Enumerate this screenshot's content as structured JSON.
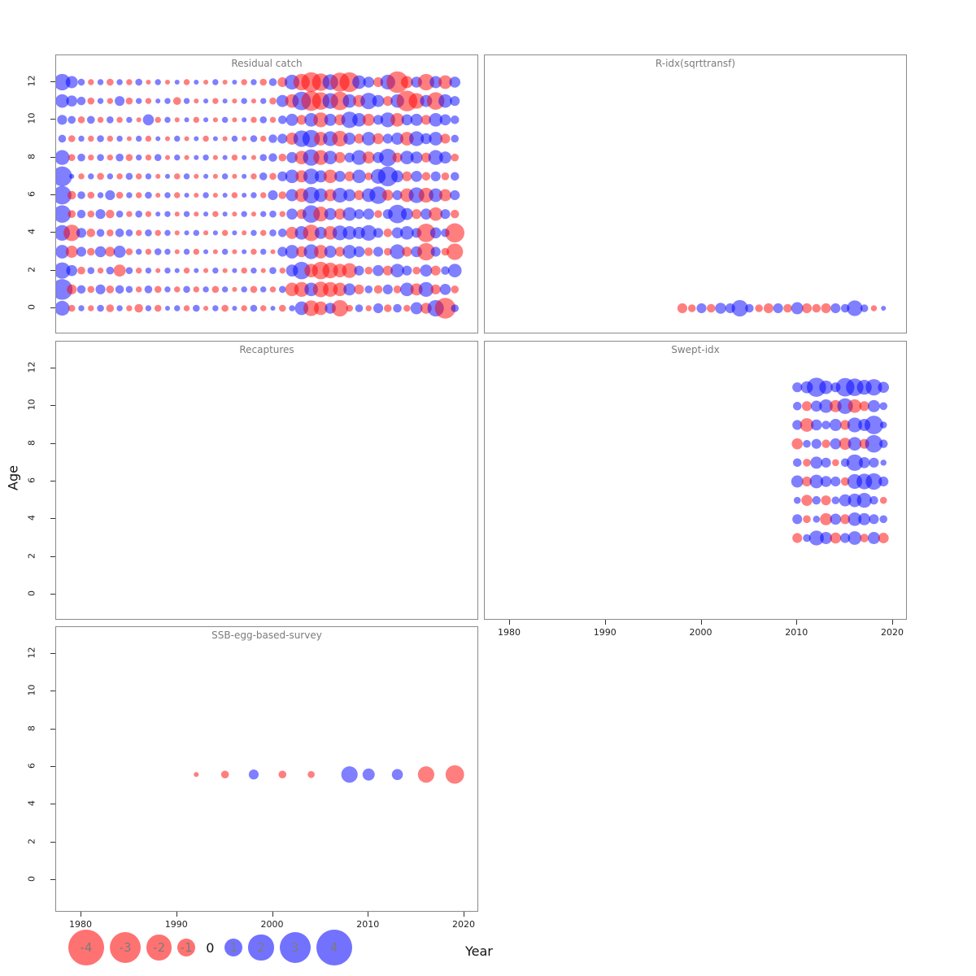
{
  "figure": {
    "x_axis_label": "Year",
    "y_axis_label": "Age",
    "x_ticks": [
      1980,
      1990,
      2000,
      2010,
      2020
    ],
    "y_ticks": [
      0,
      2,
      4,
      6,
      8,
      10,
      12
    ],
    "colors": {
      "positive": "#0000ff",
      "negative": "#ff0000"
    },
    "legend": {
      "values": [
        -4,
        -3,
        -2,
        -1,
        0,
        1,
        2,
        3,
        4
      ]
    }
  },
  "chart_data": {
    "type": "scatter",
    "subtype": "bubble-residual-matrix",
    "x_range": [
      1977,
      2021
    ],
    "y_range": [
      -1,
      13
    ],
    "x_ticks": [
      1980,
      1990,
      2000,
      2010,
      2020
    ],
    "y_ticks": [
      0,
      2,
      4,
      6,
      8,
      10,
      12
    ],
    "xlabel": "Year",
    "ylabel": "Age",
    "legend_values": [
      -4,
      -3,
      -2,
      -1,
      0,
      1,
      2,
      3,
      4
    ],
    "panels": [
      {
        "title": "Residual catch",
        "rows": [
          {
            "age": 0,
            "start_year": 1978,
            "values": [
              1.8,
              -0.4,
              0.3,
              -0.3,
              0.4,
              -0.5,
              0.3,
              -0.3,
              -0.6,
              0.3,
              -0.4,
              0.2,
              0.3,
              -0.3,
              0.4,
              -0.2,
              0.3,
              -0.4,
              0.2,
              -0.3,
              0.4,
              -0.3,
              0.2,
              -0.4,
              0.3,
              1.5,
              -2.0,
              -1.5,
              1.0,
              -2.2,
              -0.4,
              0.5,
              -0.3,
              0.8,
              -0.5,
              0.6,
              -0.4,
              1.2,
              -1.0,
              2.2,
              -3.5,
              0.5
            ]
          },
          {
            "age": 1,
            "start_year": 1978,
            "values": [
              3.5,
              -0.8,
              0.6,
              -0.4,
              0.8,
              -0.5,
              0.6,
              0.4,
              -0.3,
              0.5,
              -0.4,
              0.3,
              -0.3,
              0.4,
              -0.3,
              0.3,
              -0.4,
              0.3,
              -0.2,
              0.3,
              -0.4,
              0.3,
              -0.3,
              0.4,
              -1.5,
              -1.8,
              1.5,
              -2.0,
              -1.8,
              -1.5,
              1.2,
              -0.8,
              0.5,
              -0.6,
              0.8,
              -0.5,
              1.5,
              -1.2,
              1.8,
              -0.8,
              1.0,
              -0.5
            ]
          },
          {
            "age": 2,
            "start_year": 1978,
            "values": [
              2.2,
              1.0,
              -0.5,
              0.4,
              -0.3,
              0.5,
              -1.2,
              0.4,
              -0.3,
              0.3,
              -0.2,
              0.3,
              0.2,
              -0.3,
              0.2,
              -0.2,
              0.3,
              -0.2,
              0.2,
              -0.3,
              0.3,
              -0.2,
              0.4,
              -0.3,
              1.2,
              2.5,
              -1.5,
              -2.5,
              -2.0,
              -1.5,
              -1.8,
              0.8,
              -0.5,
              1.0,
              -0.8,
              1.5,
              0.8,
              -0.5,
              1.2,
              -0.8,
              0.6,
              1.5
            ]
          },
          {
            "age": 3,
            "start_year": 1978,
            "values": [
              1.5,
              -1.2,
              0.8,
              -0.5,
              1.0,
              -0.8,
              1.2,
              -0.4,
              0.3,
              -0.3,
              0.4,
              0.3,
              -0.2,
              0.3,
              -0.3,
              0.2,
              -0.2,
              0.3,
              -0.2,
              0.2,
              -0.3,
              0.3,
              -0.2,
              0.8,
              1.5,
              -1.0,
              1.8,
              -1.5,
              1.2,
              -0.8,
              1.5,
              1.0,
              -0.6,
              0.8,
              -0.5,
              1.8,
              -0.8,
              1.0,
              -2.5,
              0.8,
              -0.5,
              -2.2
            ]
          },
          {
            "age": 4,
            "start_year": 1978,
            "values": [
              2.0,
              -2.2,
              0.8,
              -0.6,
              0.5,
              -0.4,
              0.6,
              0.4,
              -0.3,
              0.4,
              -0.3,
              0.3,
              -0.2,
              0.2,
              0.3,
              -0.2,
              0.2,
              -0.3,
              0.2,
              -0.2,
              0.3,
              -0.3,
              0.4,
              0.6,
              -1.2,
              1.5,
              -2.2,
              1.2,
              -1.5,
              1.8,
              1.5,
              1.2,
              2.0,
              0.8,
              -0.6,
              1.0,
              1.5,
              0.8,
              -2.8,
              1.0,
              0.6,
              -3.0
            ]
          },
          {
            "age": 5,
            "start_year": 1978,
            "values": [
              2.5,
              -0.5,
              0.6,
              -0.4,
              0.8,
              -0.6,
              0.4,
              -0.3,
              0.4,
              -0.3,
              0.2,
              0.3,
              -0.2,
              0.3,
              -0.2,
              0.2,
              -0.3,
              0.2,
              -0.2,
              0.3,
              -0.2,
              0.3,
              0.4,
              -0.3,
              1.0,
              -0.8,
              2.5,
              -1.8,
              1.2,
              -1.0,
              1.5,
              0.8,
              1.0,
              -0.5,
              0.8,
              2.8,
              1.2,
              -0.8,
              1.0,
              -1.5,
              0.8,
              -0.6
            ]
          },
          {
            "age": 6,
            "start_year": 1978,
            "values": [
              2.8,
              -0.6,
              0.5,
              -0.4,
              0.3,
              0.8,
              -0.4,
              0.3,
              -0.3,
              0.4,
              -0.2,
              0.3,
              -0.3,
              0.2,
              -0.2,
              0.3,
              -0.2,
              0.2,
              -0.3,
              0.2,
              0.3,
              -0.3,
              0.8,
              -0.5,
              1.2,
              -1.5,
              2.2,
              1.5,
              -1.2,
              1.8,
              1.2,
              -0.8,
              1.5,
              2.5,
              -1.0,
              0.8,
              -1.5,
              2.0,
              -1.8,
              1.5,
              -1.2,
              0.8
            ]
          },
          {
            "age": 7,
            "start_year": 1978,
            "values": [
              3.2,
              0.2,
              -0.3,
              0.3,
              -0.4,
              0.3,
              -0.3,
              0.4,
              -0.3,
              0.3,
              -0.2,
              0.2,
              -0.3,
              0.3,
              -0.2,
              0.2,
              -0.2,
              0.3,
              -0.2,
              0.2,
              -0.3,
              0.5,
              -0.4,
              0.8,
              1.5,
              -1.2,
              2.0,
              1.2,
              -1.5,
              1.0,
              -0.8,
              1.5,
              -0.5,
              1.8,
              3.2,
              1.2,
              -0.8,
              1.0,
              -0.6,
              0.8,
              -0.5,
              0.6
            ]
          },
          {
            "age": 8,
            "start_year": 1978,
            "values": [
              1.8,
              -0.4,
              0.5,
              -0.3,
              0.4,
              -0.3,
              0.5,
              -0.4,
              0.3,
              -0.3,
              0.4,
              -0.2,
              0.3,
              -0.2,
              0.2,
              0.3,
              -0.2,
              0.2,
              -0.3,
              0.2,
              -0.2,
              0.4,
              0.6,
              -0.5,
              1.0,
              -1.5,
              2.2,
              -1.8,
              1.5,
              -1.0,
              0.8,
              1.8,
              -1.2,
              1.0,
              2.5,
              -0.8,
              1.5,
              1.2,
              -0.8,
              1.8,
              1.2,
              -0.5
            ]
          },
          {
            "age": 9,
            "start_year": 1978,
            "values": [
              0.5,
              -0.4,
              0.3,
              -0.3,
              0.4,
              -0.3,
              0.3,
              -0.2,
              0.3,
              -0.3,
              0.2,
              -0.2,
              0.3,
              -0.2,
              0.2,
              -0.3,
              0.2,
              -0.2,
              0.3,
              -0.2,
              0.4,
              -0.3,
              0.6,
              0.8,
              -1.2,
              2.2,
              2.5,
              -1.5,
              1.8,
              -2.0,
              1.2,
              -0.8,
              1.5,
              -1.0,
              0.8,
              1.2,
              -1.5,
              1.8,
              1.0,
              1.5,
              -0.8,
              0.5
            ]
          },
          {
            "age": 10,
            "start_year": 1978,
            "values": [
              0.8,
              0.5,
              -0.4,
              0.5,
              -0.3,
              0.4,
              -0.3,
              0.3,
              -0.2,
              1.0,
              -0.3,
              0.3,
              -0.2,
              0.2,
              -0.3,
              0.2,
              -0.2,
              0.3,
              -0.2,
              0.2,
              -0.3,
              0.4,
              -0.3,
              0.6,
              1.2,
              -0.8,
              1.5,
              -1.8,
              1.2,
              -1.0,
              2.2,
              1.5,
              -1.2,
              0.8,
              1.8,
              -1.5,
              1.0,
              1.2,
              -0.8,
              1.5,
              1.0,
              0.6
            ]
          },
          {
            "age": 11,
            "start_year": 1978,
            "values": [
              1.5,
              1.0,
              0.6,
              -0.4,
              0.3,
              -0.3,
              0.8,
              -0.4,
              0.3,
              -0.3,
              0.2,
              0.3,
              -0.5,
              0.3,
              -0.2,
              0.2,
              -0.3,
              0.2,
              -0.2,
              0.3,
              -0.2,
              0.3,
              -0.4,
              1.2,
              -1.5,
              2.8,
              -3.2,
              -2.5,
              2.0,
              -2.8,
              1.5,
              -1.2,
              2.2,
              1.2,
              -0.8,
              1.5,
              -3.5,
              -2.0,
              1.2,
              -2.5,
              1.5,
              0.8
            ]
          },
          {
            "age": 12,
            "start_year": 1978,
            "values": [
              2.2,
              1.2,
              0.4,
              -0.3,
              0.3,
              -0.4,
              0.3,
              -0.3,
              0.4,
              -0.2,
              0.3,
              -0.2,
              0.2,
              -0.3,
              0.2,
              -0.2,
              0.3,
              -0.2,
              0.2,
              -0.3,
              0.3,
              -0.4,
              0.5,
              -0.8,
              1.8,
              -2.2,
              -3.2,
              -2.5,
              2.0,
              -3.0,
              -3.2,
              1.5,
              1.0,
              -0.8,
              1.8,
              -3.8,
              -1.2,
              1.0,
              -2.2,
              1.2,
              -1.5,
              1.0
            ]
          }
        ]
      },
      {
        "title": "R-idx(sqrttransf)",
        "rows": [
          {
            "age": 0,
            "start_year": 1998,
            "values": [
              -0.8,
              -0.5,
              0.8,
              -0.6,
              1.0,
              0.8,
              2.2,
              0.6,
              -0.5,
              -0.8,
              0.8,
              -0.6,
              1.2,
              -0.8,
              -0.6,
              -0.8,
              0.8,
              0.6,
              2.0,
              0.5,
              -0.3,
              0.2
            ]
          }
        ]
      },
      {
        "title": "Recaptures",
        "rows": []
      },
      {
        "title": "Swept-idx",
        "rows": [
          {
            "age": 3,
            "start_year": 2010,
            "values": [
              -0.8,
              0.5,
              1.8,
              1.2,
              -1.0,
              0.8,
              1.5,
              -0.6,
              1.2,
              -0.9
            ]
          },
          {
            "age": 4,
            "start_year": 2010,
            "values": [
              0.8,
              -0.5,
              0.4,
              -1.2,
              1.0,
              -0.8,
              1.5,
              1.2,
              0.8,
              0.5
            ]
          },
          {
            "age": 5,
            "start_year": 2010,
            "values": [
              0.4,
              -1.0,
              0.6,
              -0.8,
              0.5,
              1.2,
              1.5,
              1.8,
              0.6,
              -0.4
            ]
          },
          {
            "age": 6,
            "start_year": 2010,
            "values": [
              1.2,
              -0.8,
              1.5,
              1.0,
              0.8,
              -0.6,
              1.8,
              2.0,
              2.2,
              0.8
            ]
          },
          {
            "age": 7,
            "start_year": 2010,
            "values": [
              0.6,
              -0.5,
              1.2,
              0.8,
              -0.4,
              0.6,
              2.2,
              1.0,
              0.8,
              0.3
            ]
          },
          {
            "age": 8,
            "start_year": 2010,
            "values": [
              -1.0,
              0.5,
              0.8,
              -0.6,
              1.0,
              -1.2,
              1.5,
              -0.8,
              2.5,
              0.6
            ]
          },
          {
            "age": 9,
            "start_year": 2010,
            "values": [
              0.8,
              -1.5,
              1.0,
              0.6,
              1.2,
              -0.8,
              1.8,
              1.2,
              2.8,
              0.4
            ]
          },
          {
            "age": 10,
            "start_year": 2010,
            "values": [
              0.6,
              -0.8,
              1.0,
              1.5,
              -1.2,
              2.0,
              -1.5,
              -0.8,
              1.2,
              0.5
            ]
          },
          {
            "age": 11,
            "start_year": 2010,
            "values": [
              0.8,
              1.2,
              3.0,
              1.5,
              0.8,
              2.8,
              2.5,
              1.8,
              2.2,
              1.0
            ]
          }
        ]
      },
      {
        "title": "SSB-egg-based-survey",
        "points": [
          {
            "year": 1992,
            "age": 5.6,
            "value": -0.2
          },
          {
            "year": 1995,
            "age": 5.6,
            "value": -0.5
          },
          {
            "year": 1998,
            "age": 5.6,
            "value": 0.8
          },
          {
            "year": 2001,
            "age": 5.6,
            "value": -0.5
          },
          {
            "year": 2004,
            "age": 5.6,
            "value": -0.4
          },
          {
            "year": 2008,
            "age": 5.6,
            "value": 2.2
          },
          {
            "year": 2010,
            "age": 5.6,
            "value": 1.2
          },
          {
            "year": 2013,
            "age": 5.6,
            "value": 1.0
          },
          {
            "year": 2016,
            "age": 5.6,
            "value": -2.2
          },
          {
            "year": 2019,
            "age": 5.6,
            "value": -2.8
          }
        ]
      }
    ]
  }
}
